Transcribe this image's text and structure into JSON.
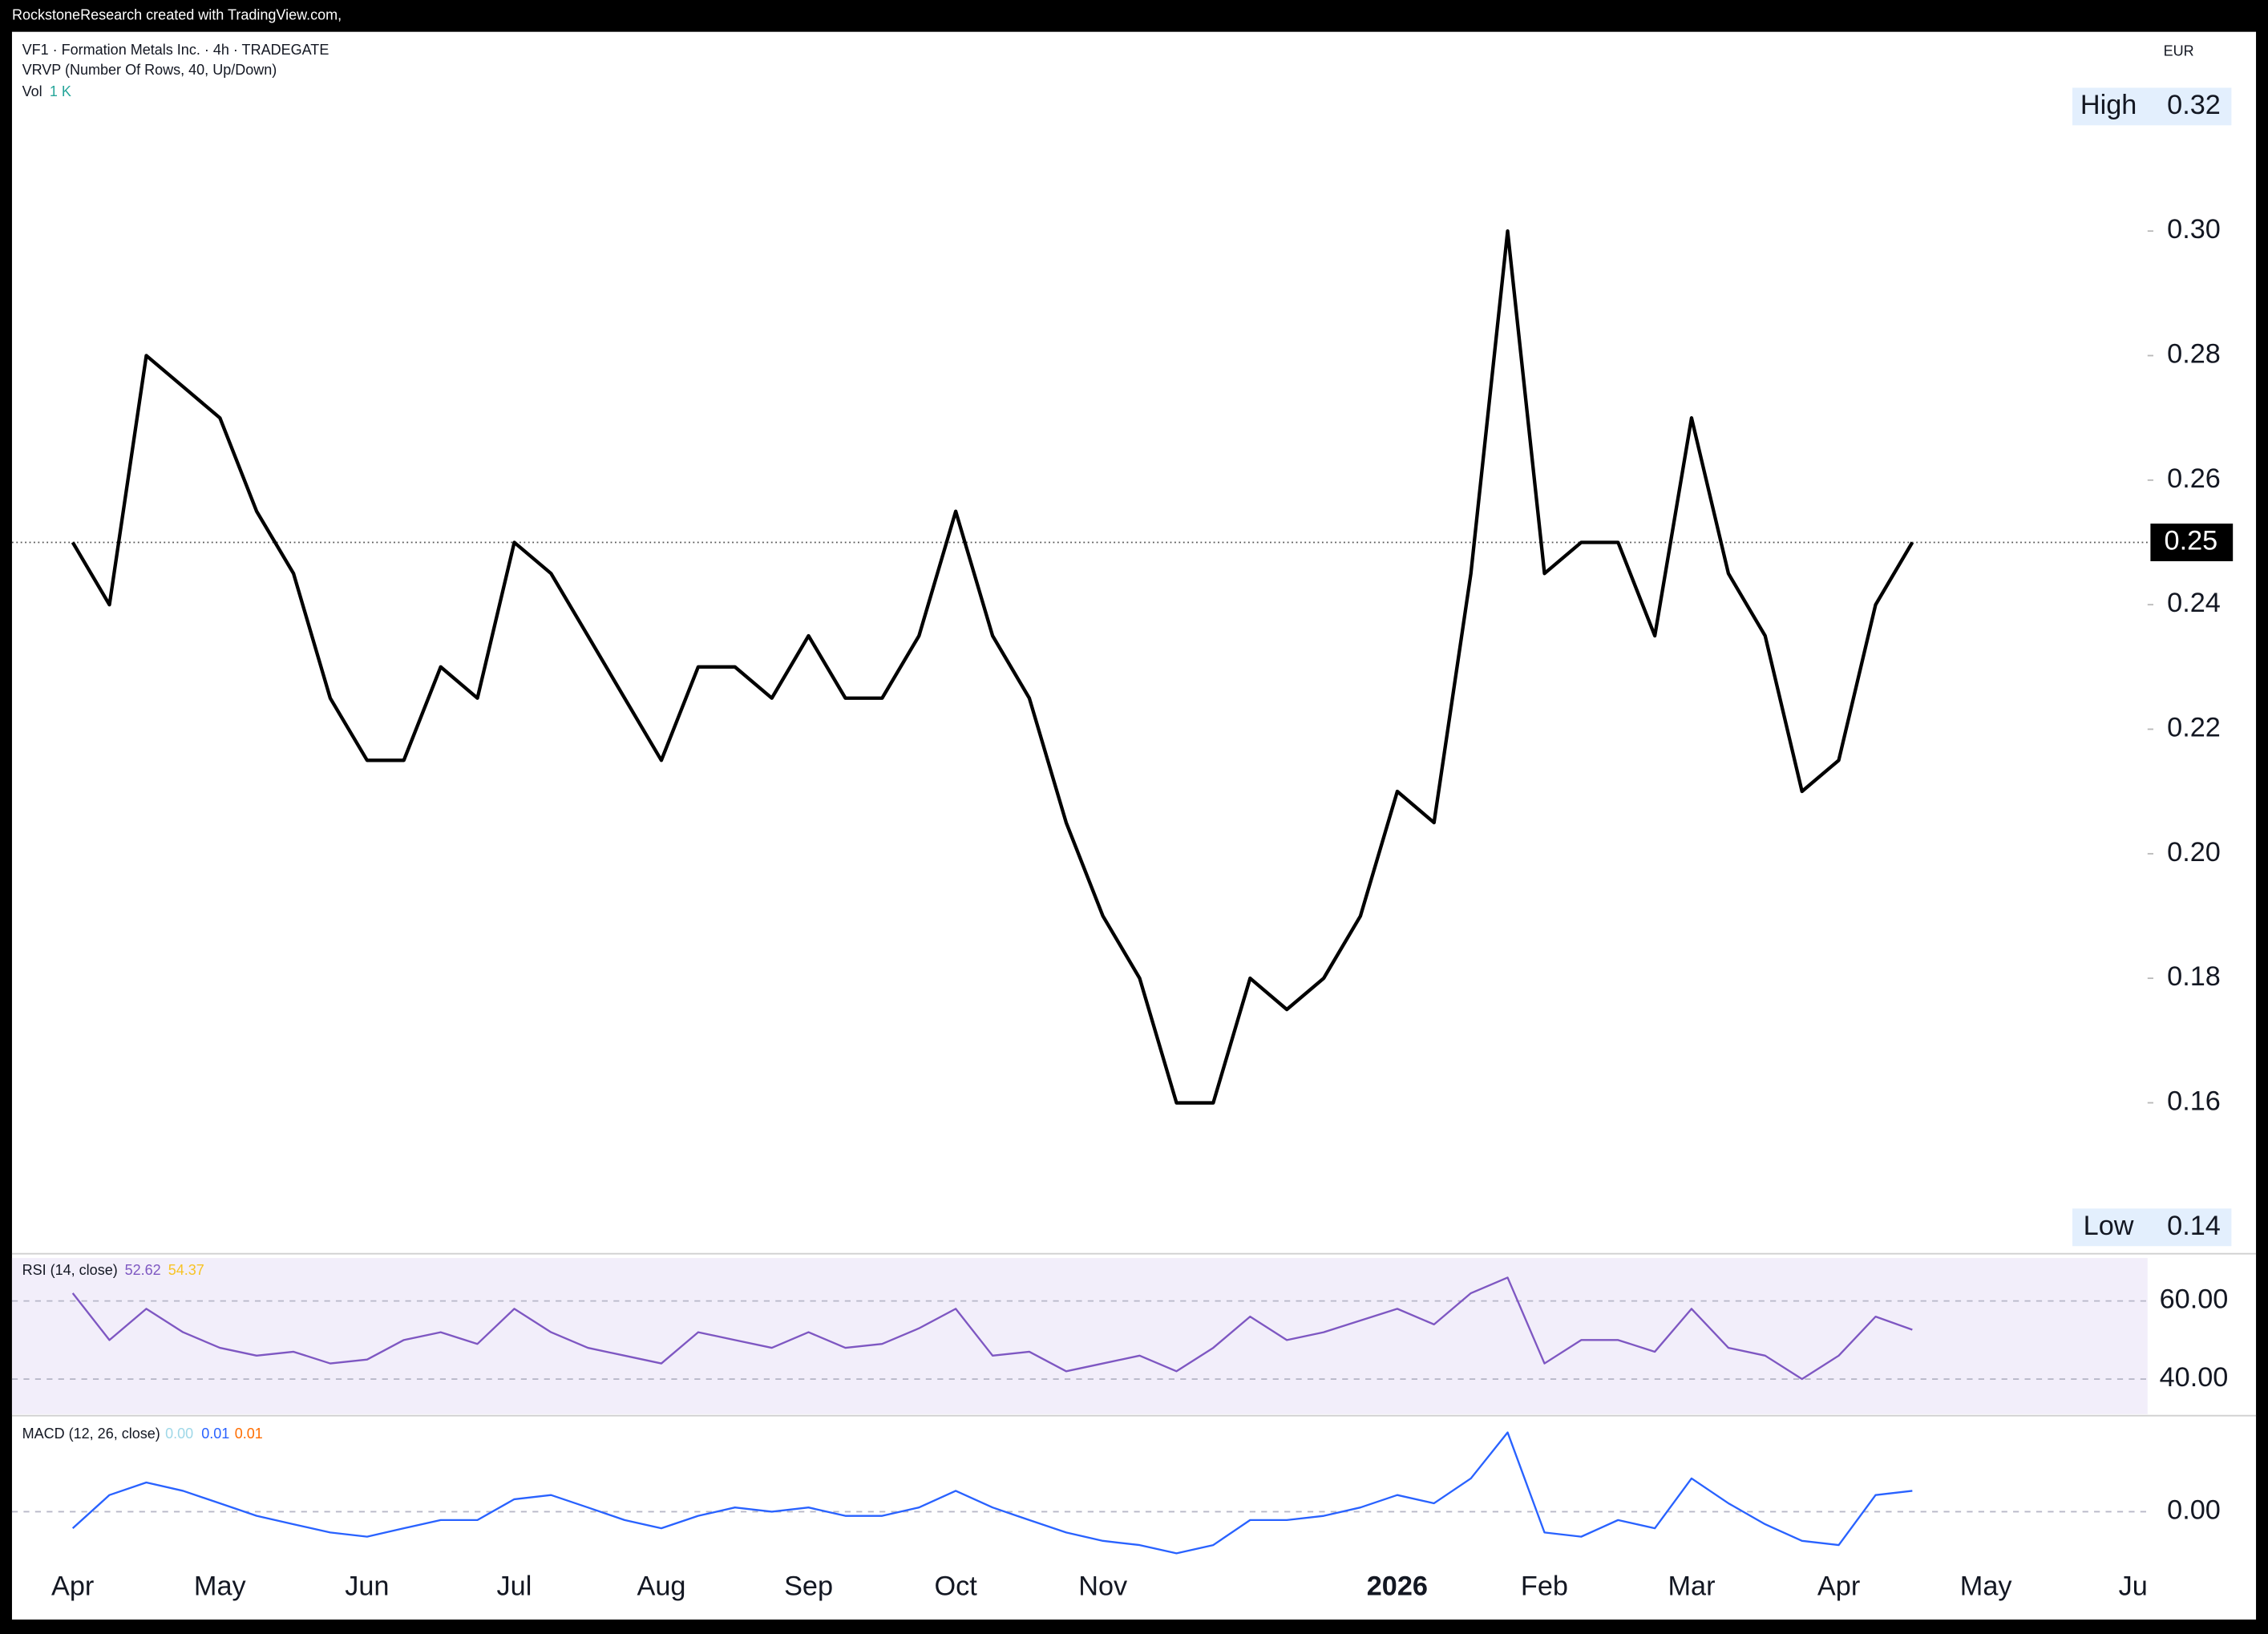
{
  "credit": "RockstoneResearch created with TradingView.com,",
  "chart_data": [
    {
      "type": "line",
      "title": "VF1 · Formation Metals Inc. · 4h · TRADEGATE",
      "subtitle": "VRVP (Number Of Rows, 40, Up/Down)",
      "volume_label": "Vol",
      "volume_value": "1 K",
      "currency": "EUR",
      "high_label": "High",
      "low_label": "Low",
      "last_price": 0.25,
      "categories": [
        "Apr",
        null,
        null,
        null,
        "May",
        null,
        null,
        null,
        "Jun",
        null,
        null,
        null,
        "Jul",
        null,
        null,
        null,
        "Aug",
        null,
        null,
        null,
        "Sep",
        null,
        null,
        null,
        "Oct",
        null,
        null,
        null,
        "Nov",
        null,
        null,
        null,
        null,
        null,
        null,
        null,
        "2026",
        null,
        null,
        null,
        "Feb",
        null,
        null,
        null,
        "Mar",
        null,
        null,
        null,
        "Apr",
        null,
        null,
        null,
        "May",
        null,
        null,
        null,
        "Ju"
      ],
      "series": [
        {
          "name": "VF1",
          "color": "#000000",
          "values": [
            0.25,
            0.24,
            0.28,
            0.275,
            0.27,
            0.255,
            0.245,
            0.225,
            0.215,
            0.215,
            0.23,
            0.225,
            0.25,
            0.245,
            0.235,
            0.225,
            0.215,
            0.23,
            0.23,
            0.225,
            0.235,
            0.225,
            0.225,
            0.235,
            0.255,
            0.235,
            0.225,
            0.205,
            0.19,
            0.18,
            0.16,
            0.16,
            0.18,
            0.175,
            0.18,
            0.19,
            0.21,
            0.205,
            0.245,
            0.3,
            0.245,
            0.25,
            0.25,
            0.235,
            0.27,
            0.245,
            0.235,
            0.21,
            0.215,
            0.24,
            0.25,
            null,
            null,
            null,
            null,
            null,
            null
          ]
        }
      ],
      "ylim": [
        0.136,
        0.332
      ],
      "yticks": [
        0.14,
        0.16,
        0.18,
        {
          "value": 0.2,
          "label": "0.20"
        },
        0.22,
        0.24,
        0.26,
        0.28,
        {
          "value": 0.3,
          "label": "0.30"
        },
        0.32
      ],
      "grid": false
    },
    {
      "type": "line",
      "title": "RSI (14, close)",
      "rsi_value": "52.62",
      "rsi_ma_value": "54.37",
      "series": [
        {
          "name": "RSI",
          "color": "#7e57c2",
          "values": [
            62,
            50,
            58,
            52,
            48,
            46,
            47,
            44,
            45,
            50,
            52,
            49,
            58,
            52,
            48,
            46,
            44,
            52,
            50,
            48,
            52,
            48,
            49,
            53,
            58,
            46,
            47,
            42,
            44,
            46,
            42,
            48,
            56,
            50,
            52,
            55,
            58,
            54,
            62,
            66,
            44,
            50,
            50,
            47,
            58,
            48,
            46,
            40,
            46,
            56,
            52.62,
            null,
            null,
            null,
            null,
            null,
            null
          ]
        }
      ],
      "ylim": [
        31,
        71
      ],
      "yticks": [
        {
          "value": 40,
          "label": "40.00"
        },
        {
          "value": 60,
          "label": "60.00"
        }
      ],
      "grid": true
    },
    {
      "type": "line",
      "title": "MACD (12, 26, close)",
      "hist_value": "0.00",
      "macd_value": "0.01",
      "signal_value": "0.01",
      "series": [
        {
          "name": "MACD",
          "color": "#2962ff",
          "values": [
            -0.004,
            0.004,
            0.007,
            0.005,
            0.002,
            -0.001,
            -0.003,
            -0.005,
            -0.006,
            -0.004,
            -0.002,
            -0.002,
            0.003,
            0.004,
            0.001,
            -0.002,
            -0.004,
            -0.001,
            0.001,
            0,
            0.001,
            -0.001,
            -0.001,
            0.001,
            0.005,
            0.001,
            -0.002,
            -0.005,
            -0.007,
            -0.008,
            -0.01,
            -0.008,
            -0.002,
            -0.002,
            -0.001,
            0.001,
            0.004,
            0.002,
            0.008,
            0.019,
            -0.005,
            -0.006,
            -0.002,
            -0.004,
            0.008,
            0.002,
            -0.003,
            -0.007,
            -0.008,
            0.004,
            0.005,
            null,
            null,
            null,
            null,
            null,
            null
          ]
        }
      ],
      "ylim": [
        -0.012,
        0.022
      ],
      "yticks": [
        {
          "value": 0,
          "label": "0.00"
        }
      ],
      "grid": true
    }
  ]
}
